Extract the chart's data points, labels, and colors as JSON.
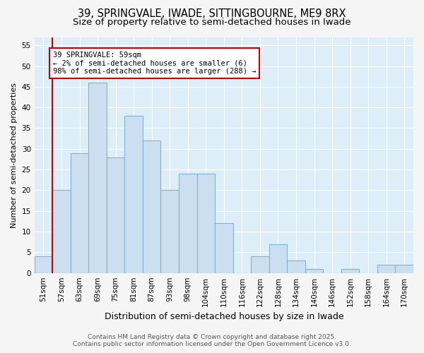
{
  "title_line1": "39, SPRINGVALE, IWADE, SITTINGBOURNE, ME9 8RX",
  "title_line2": "Size of property relative to semi-detached houses in Iwade",
  "xlabel": "Distribution of semi-detached houses by size in Iwade",
  "ylabel": "Number of semi-detached properties",
  "categories": [
    "51sqm",
    "57sqm",
    "63sqm",
    "69sqm",
    "75sqm",
    "81sqm",
    "87sqm",
    "93sqm",
    "98sqm",
    "104sqm",
    "110sqm",
    "116sqm",
    "122sqm",
    "128sqm",
    "134sqm",
    "140sqm",
    "146sqm",
    "152sqm",
    "158sqm",
    "164sqm",
    "170sqm"
  ],
  "values": [
    4,
    20,
    29,
    46,
    28,
    38,
    32,
    20,
    24,
    24,
    12,
    0,
    4,
    7,
    3,
    1,
    0,
    1,
    0,
    2,
    2
  ],
  "bar_color": "#ccdff0",
  "bar_edge_color": "#7fb3d3",
  "highlight_line_color": "#cc0000",
  "annotation_title": "39 SPRINGVALE: 59sqm",
  "annotation_line1": "← 2% of semi-detached houses are smaller (6)",
  "annotation_line2": "98% of semi-detached houses are larger (288) →",
  "annotation_box_color": "#cc0000",
  "footer_line1": "Contains HM Land Registry data © Crown copyright and database right 2025.",
  "footer_line2": "Contains public sector information licensed under the Open Government Licence v3.0.",
  "ylim": [
    0,
    57
  ],
  "yticks": [
    0,
    5,
    10,
    15,
    20,
    25,
    30,
    35,
    40,
    45,
    50,
    55
  ],
  "fig_bg_color": "#f5f5f5",
  "plot_bg_color": "#ddeef8",
  "grid_color": "#ffffff",
  "title_fontsize": 10.5,
  "subtitle_fontsize": 9.5,
  "xlabel_fontsize": 9,
  "ylabel_fontsize": 8,
  "tick_fontsize": 7.5,
  "footer_fontsize": 6.5
}
